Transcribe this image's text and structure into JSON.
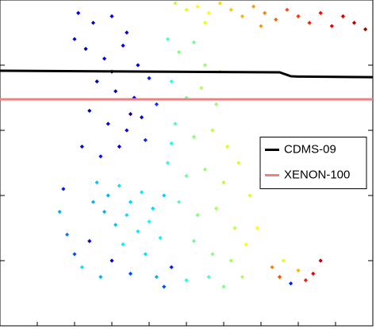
{
  "chart_data": {
    "type": "scatter",
    "xlim": [
      0,
      100
    ],
    "ylim": [
      0,
      100
    ],
    "xticks": [
      0,
      10,
      20,
      30,
      40,
      50,
      60,
      70,
      80,
      90,
      100
    ],
    "yticks": [
      20,
      40,
      60,
      80
    ],
    "colormap": "jet",
    "points": {
      "x": [
        47,
        50,
        53,
        56,
        59,
        62,
        65,
        68,
        71,
        74,
        77,
        80,
        83,
        86,
        89,
        92,
        95,
        98,
        55,
        70,
        21,
        25,
        30,
        34,
        23,
        28,
        33,
        37,
        26,
        31,
        36,
        40,
        24,
        29,
        34,
        38,
        22,
        27,
        32,
        39,
        20,
        42,
        30,
        35,
        45,
        48,
        52,
        55,
        46,
        50,
        54,
        58,
        47,
        52,
        57,
        61,
        45,
        50,
        55,
        60,
        64,
        48,
        53,
        58,
        63,
        67,
        52,
        57,
        62,
        66,
        46,
        59,
        26,
        29,
        32,
        35,
        38,
        41,
        28,
        31,
        34,
        37,
        40,
        43,
        25,
        44,
        33,
        39,
        16,
        18,
        20,
        17,
        22,
        24,
        30,
        35,
        42,
        46,
        50,
        56,
        60,
        65,
        69,
        70,
        27,
        44,
        73,
        75,
        78,
        80,
        82,
        84,
        86,
        76
      ],
      "values": [
        99,
        97,
        98,
        96,
        99,
        97,
        95,
        98,
        96,
        94,
        97,
        95,
        93,
        96,
        92,
        95,
        93,
        91,
        93,
        92,
        96,
        93,
        95,
        90,
        85,
        82,
        86,
        80,
        75,
        72,
        70,
        76,
        66,
        62,
        60,
        64,
        55,
        52,
        55,
        57,
        88,
        68,
        78,
        65,
        88,
        84,
        87,
        80,
        75,
        70,
        73,
        68,
        62,
        58,
        60,
        55,
        50,
        46,
        48,
        44,
        50,
        38,
        34,
        36,
        30,
        40,
        26,
        22,
        20,
        25,
        56,
        78,
        44,
        40,
        43,
        38,
        41,
        36,
        35,
        31,
        34,
        29,
        32,
        27,
        38,
        40,
        25,
        22,
        35,
        28,
        22,
        42,
        18,
        26,
        20,
        16,
        15,
        18,
        14,
        15,
        12,
        15,
        30,
        45,
        15,
        12,
        18,
        15,
        13,
        17,
        14,
        16,
        20,
        20
      ],
      "c": [
        0.55,
        0.6,
        0.62,
        0.63,
        0.66,
        0.68,
        0.7,
        0.72,
        0.75,
        0.78,
        0.8,
        0.82,
        0.85,
        0.87,
        0.9,
        0.92,
        0.95,
        0.97,
        0.6,
        0.73,
        0.1,
        0.08,
        0.12,
        0.1,
        0.06,
        0.09,
        0.12,
        0.1,
        0.05,
        0.08,
        0.12,
        0.15,
        0.07,
        0.1,
        0.13,
        0.11,
        0.09,
        0.14,
        0.08,
        0.16,
        0.12,
        0.18,
        0.06,
        0.05,
        0.45,
        0.5,
        0.48,
        0.52,
        0.42,
        0.5,
        0.55,
        0.52,
        0.45,
        0.5,
        0.55,
        0.58,
        0.42,
        0.48,
        0.52,
        0.55,
        0.58,
        0.45,
        0.5,
        0.53,
        0.56,
        0.6,
        0.48,
        0.5,
        0.53,
        0.62,
        0.4,
        0.55,
        0.32,
        0.3,
        0.35,
        0.33,
        0.36,
        0.34,
        0.3,
        0.32,
        0.35,
        0.36,
        0.38,
        0.37,
        0.3,
        0.33,
        0.36,
        0.35,
        0.3,
        0.25,
        0.2,
        0.15,
        0.35,
        0.12,
        0.1,
        0.2,
        0.3,
        0.15,
        0.4,
        0.45,
        0.5,
        0.55,
        0.62,
        0.65,
        0.3,
        0.2,
        0.75,
        0.8,
        0.15,
        0.7,
        0.85,
        0.9,
        0.95,
        0.6
      ]
    },
    "series": [
      {
        "name": "CDMS-09",
        "color": "#000000",
        "x": [
          0,
          75,
          78,
          80,
          100
        ],
        "values": [
          78.3,
          77.8,
          76.6,
          76.5,
          76.3
        ]
      },
      {
        "name": "XENON-100",
        "color": "#f08080",
        "x": [
          0,
          100
        ],
        "values": [
          69.5,
          69.5
        ]
      }
    ],
    "legend": "center right"
  }
}
